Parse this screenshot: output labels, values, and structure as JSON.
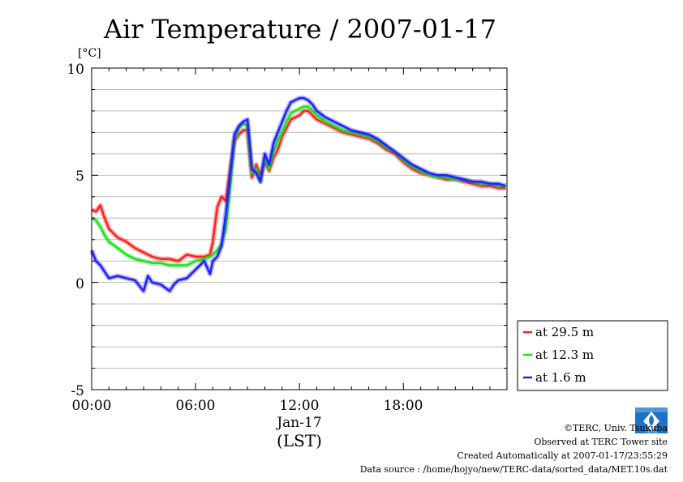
{
  "chart_data": {
    "type": "line",
    "title": "Air Temperature / 2007-01-17",
    "ylabel": "[°C]",
    "ylim": [
      -5,
      10
    ],
    "yticks": [
      "10",
      "5",
      "0",
      "-5"
    ],
    "xlim": [
      "00:00",
      "23:59"
    ],
    "xticks": [
      "00:00",
      "06:00",
      "12:00",
      "18:00"
    ],
    "xdate": "Jan-17",
    "xlabel": "(LST)",
    "grid": true,
    "legend_position": "right-bottom, outside",
    "series": [
      {
        "name": "at 29.5 m",
        "color": "#ff2020",
        "x": [
          "00:00",
          "00:15",
          "00:30",
          "00:45",
          "01:00",
          "01:30",
          "02:00",
          "02:30",
          "03:00",
          "03:30",
          "04:00",
          "04:30",
          "05:00",
          "05:30",
          "06:00",
          "06:30",
          "06:50",
          "07:00",
          "07:15",
          "07:30",
          "07:45",
          "08:00",
          "08:15",
          "08:30",
          "08:45",
          "09:00",
          "09:15",
          "09:30",
          "09:45",
          "10:00",
          "10:15",
          "10:30",
          "10:45",
          "11:00",
          "11:15",
          "11:30",
          "12:00",
          "12:15",
          "12:30",
          "12:45",
          "13:00",
          "13:30",
          "14:00",
          "14:30",
          "15:00",
          "15:30",
          "16:00",
          "16:30",
          "17:00",
          "17:30",
          "18:00",
          "18:30",
          "19:00",
          "19:30",
          "20:00",
          "20:30",
          "21:00",
          "21:30",
          "22:00",
          "22:30",
          "23:00",
          "23:30",
          "23:55"
        ],
        "values": [
          3.4,
          3.3,
          3.6,
          3.0,
          2.5,
          2.1,
          1.9,
          1.6,
          1.4,
          1.2,
          1.1,
          1.1,
          1.0,
          1.3,
          1.2,
          1.2,
          1.3,
          1.9,
          3.5,
          4.0,
          3.8,
          5.3,
          6.6,
          6.9,
          7.1,
          7.1,
          4.9,
          5.5,
          5.0,
          5.6,
          5.2,
          5.8,
          6.2,
          6.8,
          7.2,
          7.6,
          7.8,
          8.0,
          8.0,
          7.8,
          7.6,
          7.4,
          7.2,
          7.0,
          6.9,
          6.8,
          6.7,
          6.5,
          6.2,
          6.0,
          5.6,
          5.3,
          5.1,
          5.0,
          4.9,
          4.8,
          4.8,
          4.7,
          4.6,
          4.5,
          4.5,
          4.4,
          4.4
        ]
      },
      {
        "name": "at 12.3 m",
        "color": "#20e020",
        "x": [
          "00:00",
          "00:15",
          "00:30",
          "00:45",
          "01:00",
          "01:30",
          "02:00",
          "02:30",
          "03:00",
          "03:30",
          "04:00",
          "04:30",
          "05:00",
          "05:30",
          "06:00",
          "06:30",
          "06:50",
          "07:00",
          "07:15",
          "07:30",
          "07:45",
          "08:00",
          "08:15",
          "08:30",
          "08:45",
          "09:00",
          "09:15",
          "09:30",
          "09:45",
          "10:00",
          "10:15",
          "10:30",
          "10:45",
          "11:00",
          "11:15",
          "11:30",
          "12:00",
          "12:15",
          "12:30",
          "12:45",
          "13:00",
          "13:30",
          "14:00",
          "14:30",
          "15:00",
          "15:30",
          "16:00",
          "16:30",
          "17:00",
          "17:30",
          "18:00",
          "18:30",
          "19:00",
          "19:30",
          "20:00",
          "20:30",
          "21:00",
          "21:30",
          "22:00",
          "22:30",
          "23:00",
          "23:30",
          "23:55"
        ],
        "values": [
          3.0,
          2.9,
          2.6,
          2.2,
          1.9,
          1.6,
          1.3,
          1.1,
          1.0,
          0.9,
          0.9,
          0.8,
          0.8,
          0.8,
          1.0,
          1.1,
          1.2,
          1.3,
          1.5,
          1.8,
          2.5,
          4.5,
          6.7,
          7.2,
          7.4,
          7.3,
          5.1,
          5.3,
          4.7,
          5.8,
          5.3,
          6.1,
          6.6,
          7.0,
          7.5,
          7.9,
          8.1,
          8.2,
          8.2,
          8.0,
          7.8,
          7.5,
          7.3,
          7.1,
          7.0,
          6.9,
          6.8,
          6.6,
          6.3,
          6.1,
          5.7,
          5.4,
          5.2,
          5.0,
          4.9,
          4.9,
          4.8,
          4.8,
          4.7,
          4.6,
          4.6,
          4.5,
          4.5
        ]
      },
      {
        "name": "at 1.6 m",
        "color": "#2020ff",
        "x": [
          "00:00",
          "00:15",
          "00:30",
          "00:45",
          "01:00",
          "01:30",
          "02:00",
          "02:30",
          "03:00",
          "03:15",
          "03:30",
          "04:00",
          "04:30",
          "04:45",
          "05:00",
          "05:30",
          "06:00",
          "06:30",
          "06:50",
          "07:00",
          "07:15",
          "07:30",
          "07:45",
          "08:00",
          "08:15",
          "08:30",
          "08:45",
          "09:00",
          "09:15",
          "09:30",
          "09:45",
          "10:00",
          "10:15",
          "10:30",
          "10:45",
          "11:00",
          "11:15",
          "11:30",
          "12:00",
          "12:15",
          "12:30",
          "12:45",
          "13:00",
          "13:30",
          "14:00",
          "14:30",
          "15:00",
          "15:30",
          "16:00",
          "16:30",
          "17:00",
          "17:30",
          "18:00",
          "18:30",
          "19:00",
          "19:30",
          "20:00",
          "20:30",
          "21:00",
          "21:30",
          "22:00",
          "22:30",
          "23:00",
          "23:30",
          "23:55"
        ],
        "values": [
          1.5,
          1.0,
          0.8,
          0.5,
          0.2,
          0.3,
          0.2,
          0.1,
          -0.4,
          0.3,
          0.0,
          -0.1,
          -0.4,
          -0.1,
          0.1,
          0.2,
          0.6,
          1.0,
          0.4,
          1.0,
          1.2,
          1.7,
          3.2,
          5.0,
          6.9,
          7.3,
          7.5,
          7.6,
          5.3,
          5.1,
          4.7,
          6.0,
          5.5,
          6.5,
          7.0,
          7.5,
          8.0,
          8.4,
          8.6,
          8.6,
          8.5,
          8.3,
          8.0,
          7.7,
          7.5,
          7.3,
          7.1,
          7.0,
          6.9,
          6.7,
          6.4,
          6.1,
          5.8,
          5.5,
          5.3,
          5.1,
          5.0,
          5.0,
          4.9,
          4.8,
          4.7,
          4.7,
          4.6,
          4.6,
          4.5
        ]
      }
    ]
  },
  "credits": {
    "copyright": "©TERC, Univ. Tsukuba",
    "site": "Observed at TERC Tower site",
    "created": "Created Automatically at 2007-01-17/23:55:29",
    "source": "Data source : /home/hojyo/new/TERC-data/sorted_data/MET.10s.dat",
    "logo_text": "TERC"
  }
}
